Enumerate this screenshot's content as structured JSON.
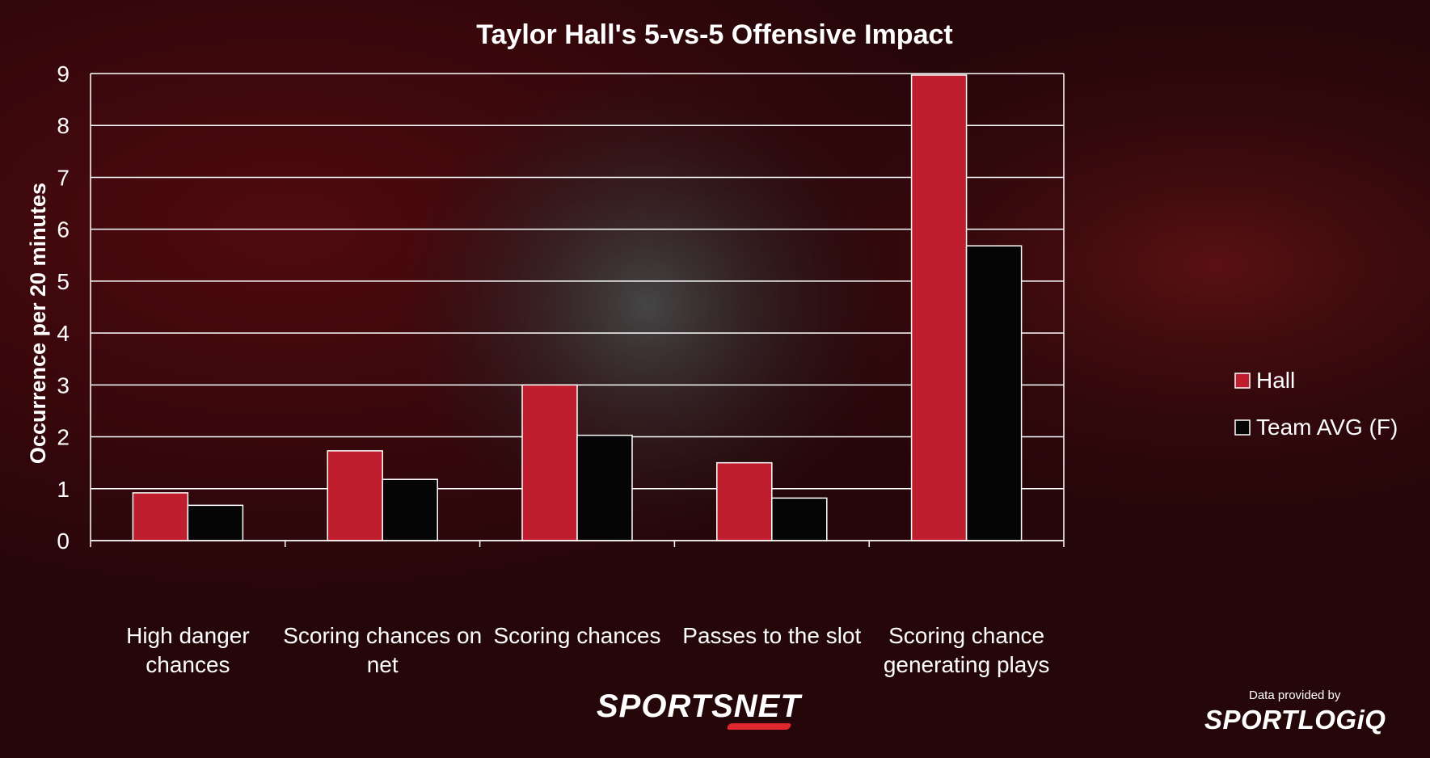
{
  "colors": {
    "hall": "#be1e2d",
    "team_avg": "#050505",
    "grid": "#ffffff",
    "text": "#ffffff"
  },
  "background": {
    "description_colors": [
      "#5a0a10",
      "#3a3a3a",
      "#2a2a2a"
    ]
  },
  "chart_data": {
    "type": "bar",
    "title": "Taylor Hall's 5-vs-5 Offensive Impact",
    "xlabel": "",
    "ylabel": "Occurrence per 20 minutes",
    "ylim": [
      0,
      9
    ],
    "yticks": [
      0,
      1,
      2,
      3,
      4,
      5,
      6,
      7,
      8,
      9
    ],
    "grid": true,
    "legend_position": "right",
    "categories": [
      [
        "High danger",
        "chances"
      ],
      [
        "Scoring chances on",
        "net"
      ],
      [
        "Scoring chances"
      ],
      [
        "Passes to the slot"
      ],
      [
        "Scoring chance",
        "generating plays"
      ]
    ],
    "series": [
      {
        "name": "Hall",
        "color": "#be1e2d",
        "values": [
          0.92,
          1.73,
          3.0,
          1.5,
          8.97
        ]
      },
      {
        "name": "Team AVG (F)",
        "color": "#050505",
        "values": [
          0.68,
          1.18,
          2.03,
          0.82,
          5.68
        ]
      }
    ]
  },
  "branding": {
    "network": "SPORTSNET",
    "credit_caption": "Data provided by",
    "credit_logo": "SPORTLOGiQ"
  }
}
